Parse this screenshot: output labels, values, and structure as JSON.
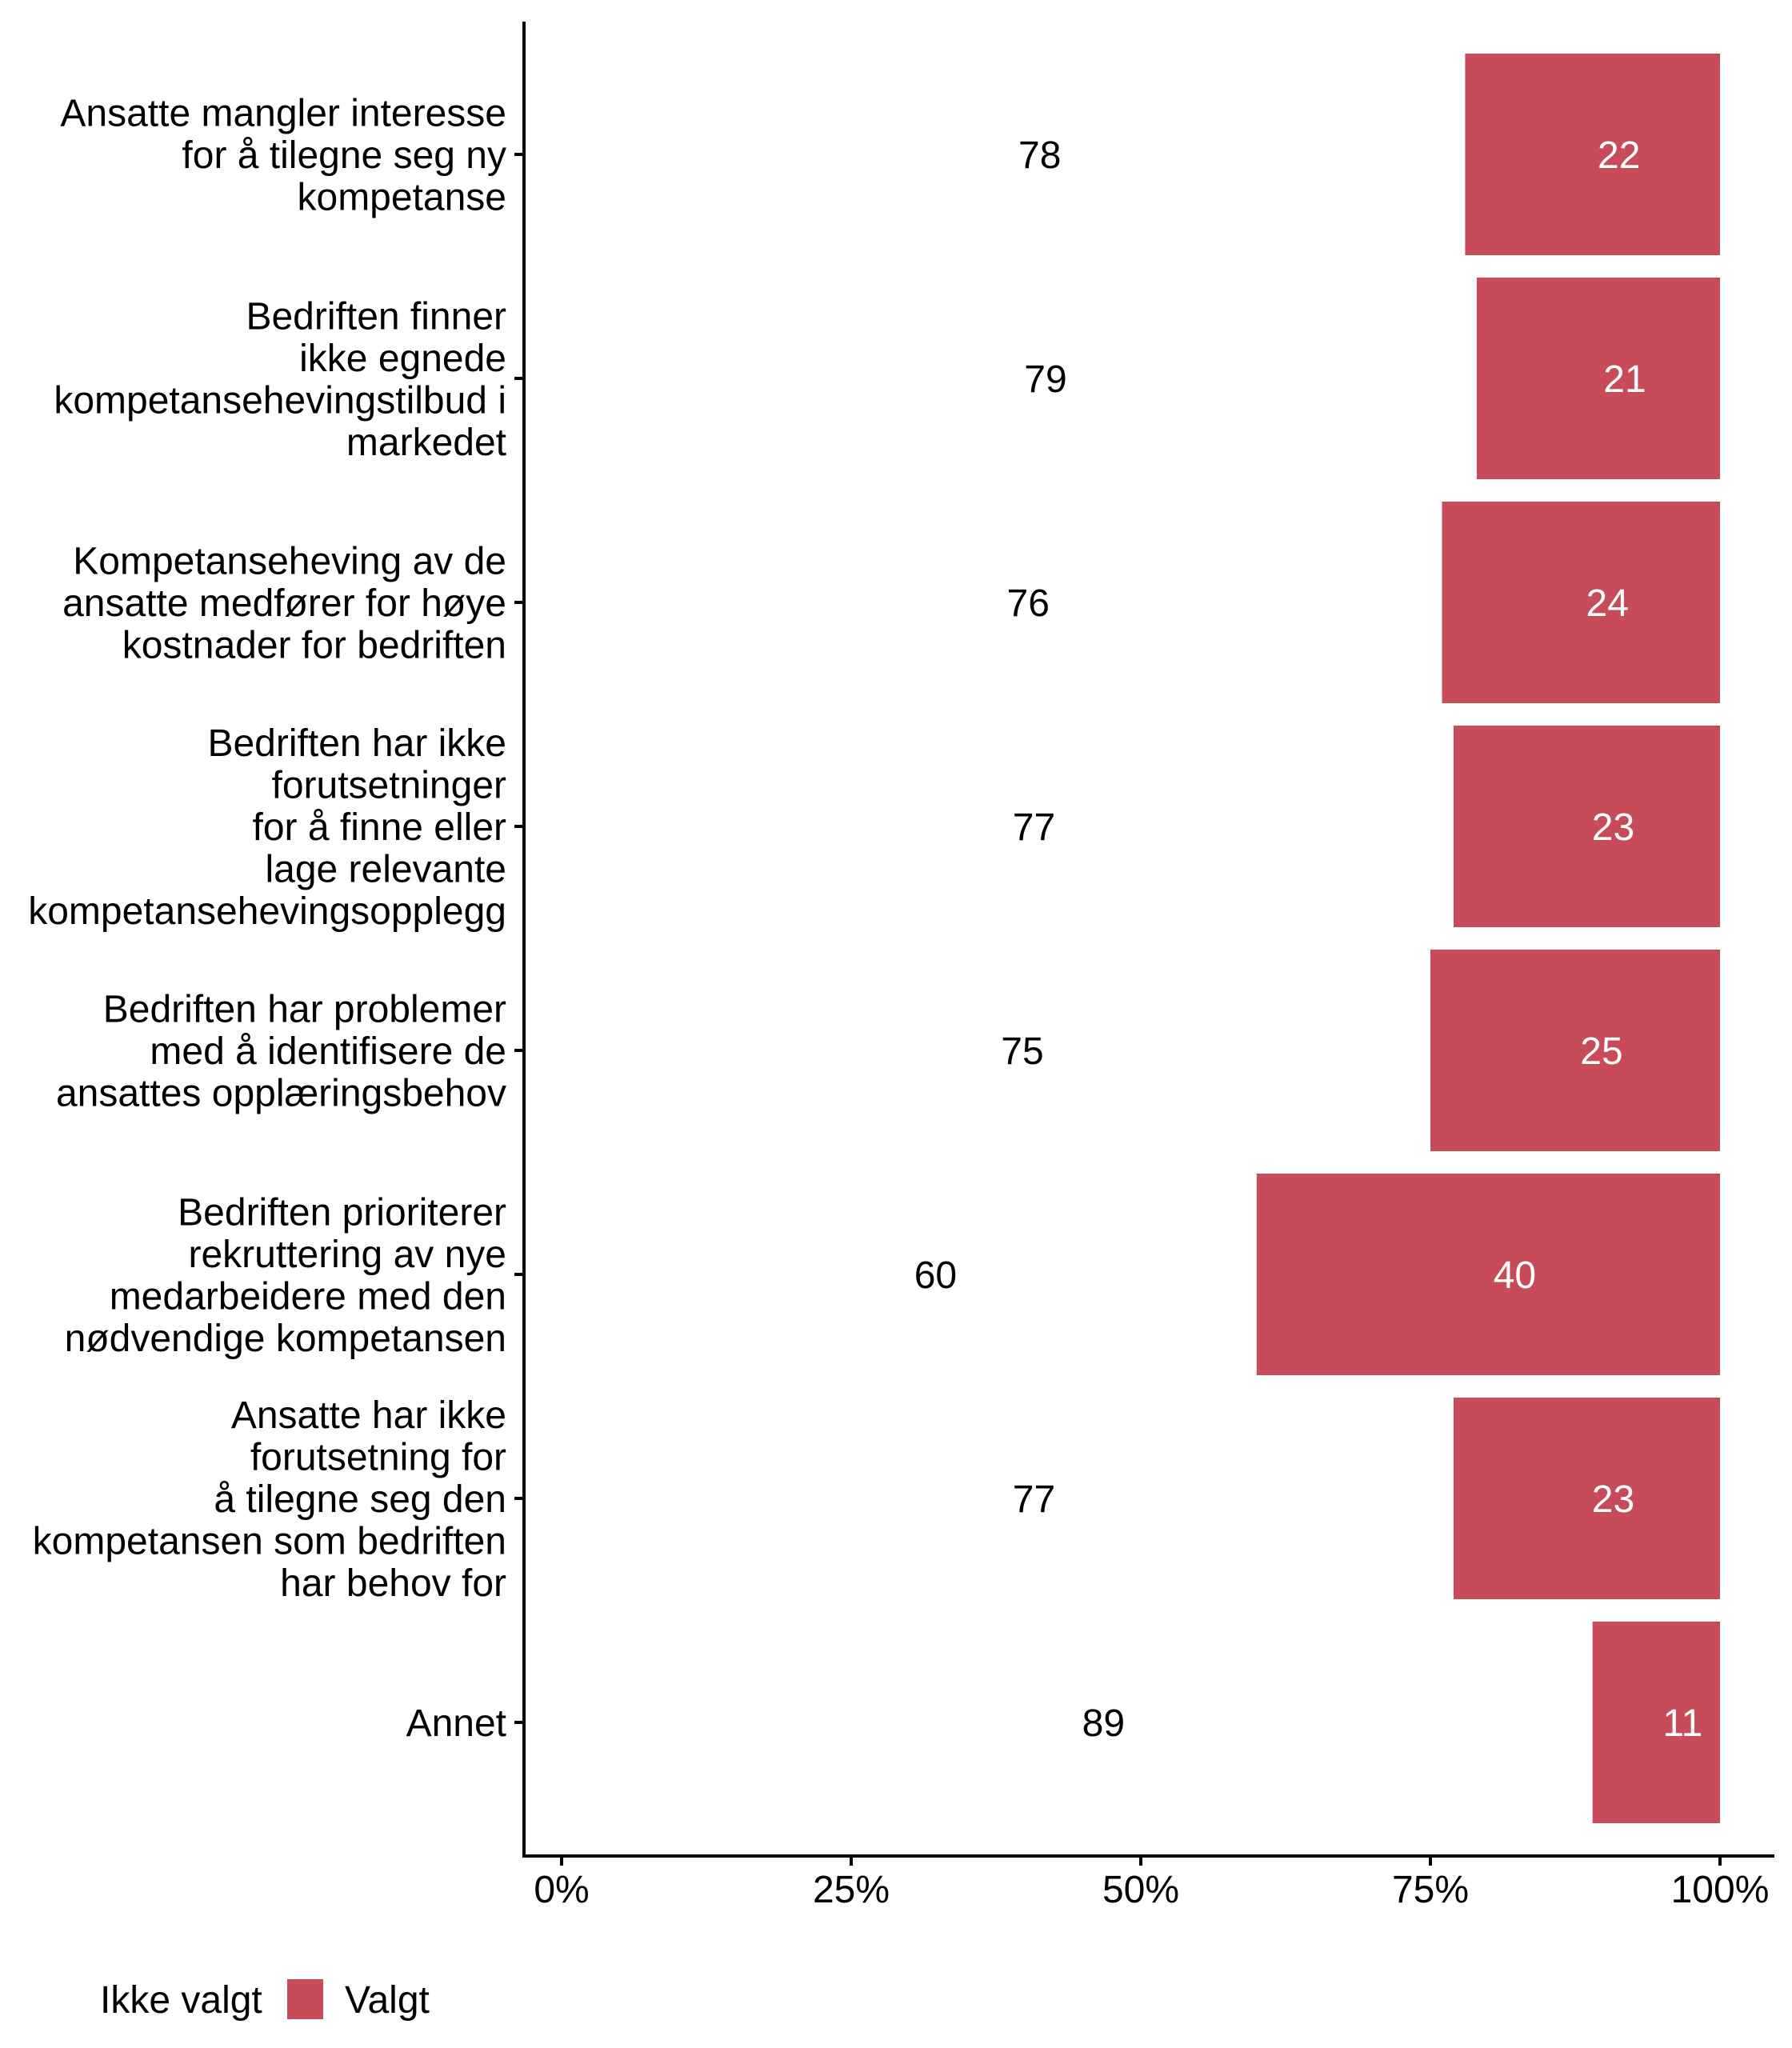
{
  "chart_data": {
    "type": "bar",
    "orientation": "horizontal",
    "stacked": "percent",
    "title": "",
    "xlabel": "",
    "ylabel": "",
    "xlim": [
      0,
      100
    ],
    "x_ticks": [
      "0%",
      "25%",
      "50%",
      "75%",
      "100%"
    ],
    "x_tick_values": [
      0,
      25,
      50,
      75,
      100
    ],
    "grid": false,
    "legend_position": "bottom-left",
    "categories": [
      [
        "Ansatte mangler interesse",
        "for å tilegne seg ny",
        "kompetanse"
      ],
      [
        "Bedriften finner",
        "ikke egnede",
        "kompetansehevingstilbud i",
        "markedet"
      ],
      [
        "Kompetanseheving av de",
        "ansatte medfører for høye",
        "kostnader for bedriften"
      ],
      [
        "Bedriften har ikke",
        "forutsetninger",
        "for å finne eller",
        "lage relevante",
        "kompetansehevingsopplegg"
      ],
      [
        "Bedriften har problemer",
        "med å identifisere de",
        "ansattes opplæringsbehov"
      ],
      [
        "Bedriften prioriterer",
        "rekruttering av nye",
        "medarbeidere med den",
        "nødvendige kompetansen"
      ],
      [
        "Ansatte har ikke",
        "forutsetning for",
        "å tilegne seg den",
        "kompetansen som bedriften",
        "har behov for"
      ],
      [
        "Annet"
      ]
    ],
    "series": [
      {
        "name": "Ikke valgt",
        "color": "#FFFFFF",
        "label_color": "#000000",
        "values": [
          78,
          79,
          76,
          77,
          75,
          60,
          77,
          89
        ]
      },
      {
        "name": "Valgt",
        "color": "#C84B5A",
        "label_color": "#FFFFFF",
        "values": [
          22,
          21,
          24,
          23,
          25,
          40,
          23,
          11
        ]
      }
    ]
  },
  "legend": {
    "items": [
      {
        "label": "Ikke valgt",
        "color": "#FFFFFF"
      },
      {
        "label": "Valgt",
        "color": "#C84B5A"
      }
    ]
  }
}
